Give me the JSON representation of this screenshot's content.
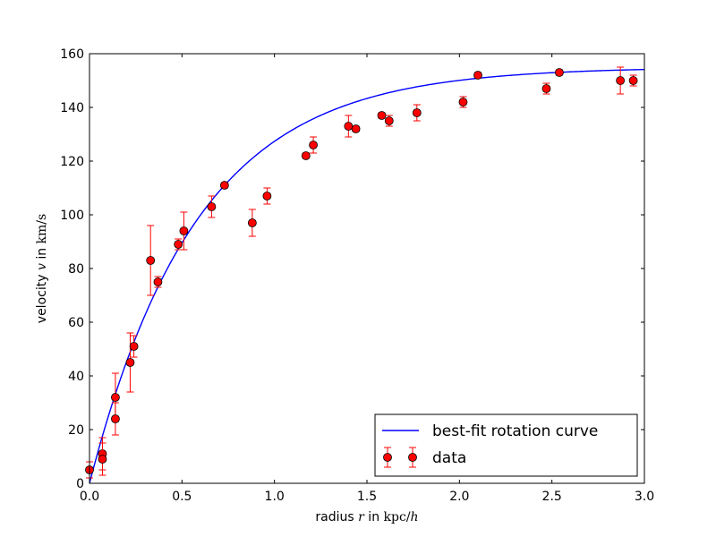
{
  "chart_data": {
    "type": "scatter",
    "title": "",
    "xlabel": {
      "prefix": "radius ",
      "var": "r",
      "middle": " in ",
      "unit": "kpc/",
      "unit_var": "h"
    },
    "ylabel": {
      "prefix": "velocity ",
      "var": "v",
      "middle": " in ",
      "unit": "km/s"
    },
    "xlim": [
      0.0,
      3.0
    ],
    "ylim": [
      0,
      160
    ],
    "xticks": [
      0.0,
      0.5,
      1.0,
      1.5,
      2.0,
      2.5,
      3.0
    ],
    "xtick_labels": [
      "0.0",
      "0.5",
      "1.0",
      "1.5",
      "2.0",
      "2.5",
      "3.0"
    ],
    "yticks": [
      0,
      20,
      40,
      60,
      80,
      100,
      120,
      140,
      160
    ],
    "ytick_labels": [
      "0",
      "20",
      "40",
      "60",
      "80",
      "100",
      "120",
      "140",
      "160"
    ],
    "grid": false,
    "legend_position": "lower-right",
    "colors": {
      "curve": "#0000ff",
      "marker_fill": "#ff0000",
      "marker_edge": "#000000",
      "errorbar": "#ff0000"
    },
    "series": [
      {
        "name": "best-fit rotation curve",
        "kind": "line",
        "model": "v = vmax * (1 - exp(-r / rs))",
        "params": {
          "vmax": 155,
          "rs": 0.58
        }
      },
      {
        "name": "data",
        "kind": "errorbar",
        "points": [
          {
            "x": 0.0,
            "y": 5,
            "err": 3
          },
          {
            "x": 0.07,
            "y": 11,
            "err": 6
          },
          {
            "x": 0.07,
            "y": 9,
            "err": 6
          },
          {
            "x": 0.14,
            "y": 32,
            "err": 9
          },
          {
            "x": 0.14,
            "y": 24,
            "err": 6
          },
          {
            "x": 0.22,
            "y": 45,
            "err": 11
          },
          {
            "x": 0.24,
            "y": 51,
            "err": 4
          },
          {
            "x": 0.33,
            "y": 83,
            "err": 13
          },
          {
            "x": 0.37,
            "y": 75,
            "err": 2
          },
          {
            "x": 0.48,
            "y": 89,
            "err": 2
          },
          {
            "x": 0.51,
            "y": 94,
            "err": 7
          },
          {
            "x": 0.66,
            "y": 103,
            "err": 4
          },
          {
            "x": 0.73,
            "y": 111,
            "err": 1
          },
          {
            "x": 0.88,
            "y": 97,
            "err": 5
          },
          {
            "x": 0.96,
            "y": 107,
            "err": 3
          },
          {
            "x": 1.17,
            "y": 122,
            "err": 1
          },
          {
            "x": 1.21,
            "y": 126,
            "err": 3
          },
          {
            "x": 1.4,
            "y": 133,
            "err": 4
          },
          {
            "x": 1.44,
            "y": 132,
            "err": 1
          },
          {
            "x": 1.58,
            "y": 137,
            "err": 1
          },
          {
            "x": 1.62,
            "y": 135,
            "err": 2
          },
          {
            "x": 1.77,
            "y": 138,
            "err": 3
          },
          {
            "x": 2.02,
            "y": 142,
            "err": 2
          },
          {
            "x": 2.1,
            "y": 152,
            "err": 1
          },
          {
            "x": 2.47,
            "y": 147,
            "err": 2
          },
          {
            "x": 2.54,
            "y": 153,
            "err": 1
          },
          {
            "x": 2.87,
            "y": 150,
            "err": 5
          },
          {
            "x": 2.94,
            "y": 150,
            "err": 2
          }
        ]
      }
    ]
  }
}
